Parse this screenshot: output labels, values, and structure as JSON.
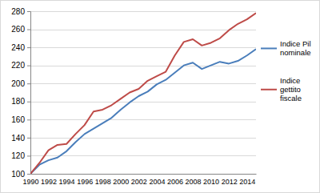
{
  "chart_data": {
    "type": "line",
    "categories": [
      "1990",
      null,
      "1992",
      null,
      "1994",
      null,
      "1996",
      null,
      "1998",
      null,
      "2000",
      null,
      "2002",
      null,
      "2004",
      null,
      "2006",
      null,
      "2008",
      null,
      "2010",
      null,
      "2012",
      null,
      "2014",
      null
    ],
    "series": [
      {
        "name": "Indice Pil nominale",
        "color": "#4a7ebb",
        "values": [
          100,
          110,
          115,
          118,
          125,
          135,
          144,
          150,
          156,
          162,
          171,
          179,
          186,
          191,
          199,
          204,
          212,
          220,
          223,
          216,
          220,
          224,
          222,
          225,
          231,
          238
        ]
      },
      {
        "name": "Indice gettito fiscale",
        "color": "#be4b48",
        "values": [
          100,
          112,
          126,
          132,
          133,
          144,
          154,
          169,
          171,
          176,
          183,
          190,
          194,
          203,
          208,
          213,
          231,
          246,
          249,
          242,
          245,
          250,
          259,
          266,
          271,
          278
        ]
      }
    ],
    "ylim": [
      100,
      280
    ],
    "yticks": [
      100,
      120,
      140,
      160,
      180,
      200,
      220,
      240,
      260,
      280
    ],
    "grid": true,
    "legend": "right"
  }
}
